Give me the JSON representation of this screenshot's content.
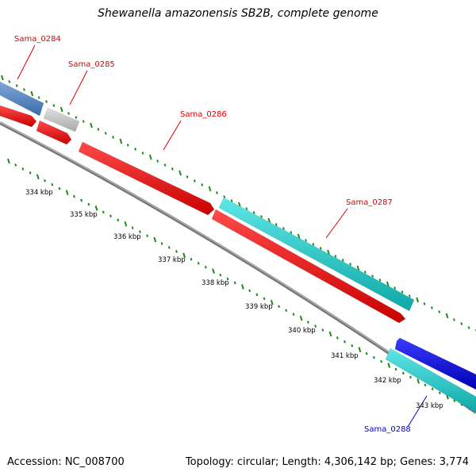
{
  "title": "Shewanella amazonensis SB2B, complete genome",
  "accession": "Accession: NC_008700",
  "summary": "Topology: circular; Length: 4,306,142 bp; Genes: 3,774",
  "colors": {
    "backbone": "#777777",
    "tick": "#1a8a1a",
    "label_red": "#dd0000",
    "label_blue": "#0000cc",
    "steelblue": "#4a7fb8",
    "gray": "#c0c0c0",
    "red": "#ee1111",
    "cyan": "#22cccc",
    "blue": "#0000ee"
  },
  "genes": [
    {
      "id": "Sama_0284",
      "label_color": "red",
      "feature_color": "steelblue"
    },
    {
      "id": "Sama_0285",
      "label_color": "red",
      "feature_color": "gray"
    },
    {
      "id": "Sama_0286",
      "label_color": "red",
      "feature_color": "red"
    },
    {
      "id": "Sama_0287",
      "label_color": "red",
      "feature_color": "cyan"
    },
    {
      "id": "Sama_0288",
      "label_color": "blue",
      "feature_color": "cyan"
    }
  ],
  "kbp_ticks": [
    "334 kbp",
    "335 kbp",
    "336 kbp",
    "337 kbp",
    "338 kbp",
    "339 kbp",
    "340 kbp",
    "341 kbp",
    "342 kbp",
    "343 kbp"
  ]
}
